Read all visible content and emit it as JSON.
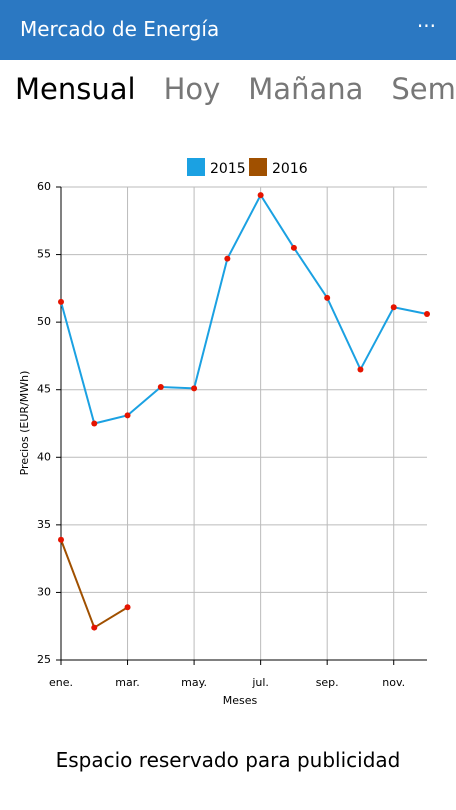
{
  "app_bar": {
    "title": "Mercado de Energía",
    "menu": "···"
  },
  "tabs": [
    "Mensual",
    "Hoy",
    "Mañana",
    "Semana"
  ],
  "chart_data": {
    "type": "line",
    "x_label": "Meses",
    "y_label": "Precios (EUR/MWh)",
    "categories": [
      "ene.",
      null,
      "mar.",
      null,
      "may.",
      null,
      "jul.",
      null,
      "sep.",
      null,
      "nov.",
      null
    ],
    "series": [
      {
        "name": "2015",
        "color": "#1ba1e2",
        "values": [
          51.5,
          42.5,
          43.1,
          45.2,
          45.1,
          54.7,
          59.4,
          55.5,
          51.8,
          46.5,
          51.1,
          50.6
        ]
      },
      {
        "name": "2016",
        "color": "#a05000",
        "values": [
          33.9,
          27.4,
          28.9,
          null,
          null,
          null,
          null,
          null,
          null,
          null,
          null,
          null
        ]
      }
    ],
    "marker_color": "#e51400",
    "ylim": [
      25,
      60
    ],
    "yticks": [
      25,
      30,
      35,
      40,
      45,
      50,
      55,
      60
    ],
    "grid": true,
    "legend": "top"
  },
  "ad": "Espacio reservado para publicidad"
}
